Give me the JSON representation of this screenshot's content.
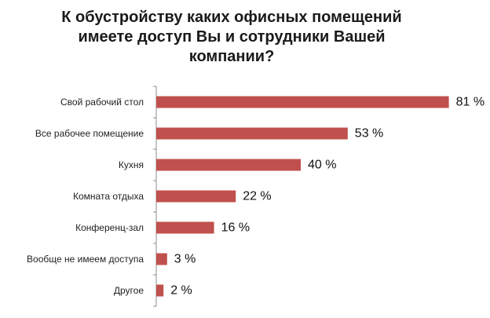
{
  "chart_data": {
    "type": "bar",
    "orientation": "horizontal",
    "title_lines": [
      "К обустройству каких офисных помещений",
      "имеете доступ Вы и сотрудники Вашей",
      "компании?"
    ],
    "categories": [
      "Свой рабочий стол",
      "Все рабочее помещение",
      "Кухня",
      "Комната отдыха",
      "Конференц-зал",
      "Вообще не имеем доступа",
      "Другое"
    ],
    "values": [
      81,
      53,
      40,
      22,
      16,
      3,
      2
    ],
    "value_labels": [
      "81 %",
      "53 %",
      "40 %",
      "22 %",
      "16 %",
      "3 %",
      "2 %"
    ],
    "unit": "%",
    "xlim": [
      0,
      100
    ],
    "grid": false,
    "legend": "none",
    "colors": {
      "bar": "#c0504d",
      "axis": "#8c8c8c"
    }
  }
}
